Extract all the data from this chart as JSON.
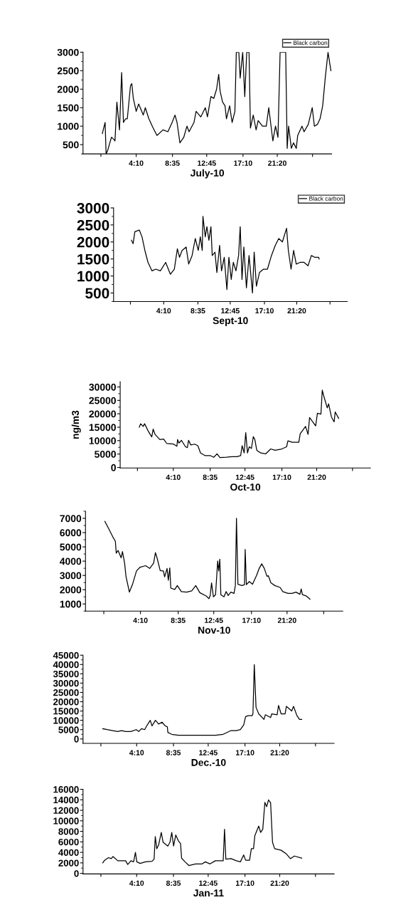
{
  "chart_data": [
    {
      "type": "line",
      "xlabel": "July-10",
      "legend": "top right",
      "xlim": [
        -2.3,
        27.95
      ],
      "ylim": [
        250,
        3000
      ],
      "yticks": [
        500,
        1000,
        1500,
        2000,
        2500,
        3000
      ],
      "xticks": [
        {
          "value": -0.125,
          "label": null
        },
        {
          "value": 4.1667,
          "label": "4:10"
        },
        {
          "value": 8.5833,
          "label": "8:35"
        },
        {
          "value": 12.75,
          "label": "12:45"
        },
        {
          "value": 17.1667,
          "label": "17:10"
        },
        {
          "value": 21.3333,
          "label": "21:20"
        },
        {
          "value": 25.625,
          "label": null
        }
      ],
      "series": [
        {
          "name": "Black carbon",
          "color": "#000000",
          "x": [
            0.05,
            0.39,
            0.51,
            0.71,
            0.96,
            1.16,
            1.42,
            1.59,
            1.82,
            2.14,
            2.4,
            2.62,
            2.88,
            3.09,
            3.48,
            3.64,
            3.82,
            4.17,
            4.47,
            5.03,
            5.28,
            5.71,
            6.23,
            6.7,
            7.43,
            8.03,
            8.54,
            8.89,
            9.14,
            9.49,
            9.96,
            10.35,
            10.6,
            11.2,
            11.46,
            12.03,
            12.58,
            12.84,
            13.26,
            13.61,
            13.95,
            14.21,
            14.38,
            14.68,
            14.98,
            15.15,
            15.54,
            15.84,
            16.18,
            16.35,
            16.66,
            16.82,
            17.13,
            17.38,
            17.62,
            17.9,
            18.07,
            18.41,
            18.76,
            19.01,
            19.53,
            20.0,
            20.3,
            20.8,
            21.12,
            21.42,
            21.68,
            22.36,
            22.54,
            22.71,
            23.05,
            23.31,
            23.65,
            23.82,
            24.34,
            24.6,
            25.11,
            25.59,
            25.85,
            26.23,
            26.54,
            26.86,
            27.17,
            27.51,
            27.86
          ],
          "values": [
            800,
            1100,
            250,
            350,
            550,
            700,
            650,
            600,
            1650,
            900,
            2450,
            1100,
            1200,
            1200,
            2100,
            2150,
            1750,
            1400,
            1600,
            1300,
            1500,
            1200,
            950,
            750,
            900,
            850,
            1100,
            1300,
            1100,
            550,
            700,
            1000,
            850,
            1100,
            1400,
            1250,
            1500,
            1250,
            1800,
            1750,
            2000,
            2400,
            1950,
            1650,
            1550,
            1200,
            1550,
            1100,
            1400,
            3000,
            3000,
            2300,
            3000,
            1800,
            3000,
            3000,
            950,
            1300,
            900,
            1150,
            1000,
            1000,
            1500,
            600,
            1000,
            700,
            3000,
            3000,
            400,
            1000,
            400,
            550,
            400,
            750,
            1000,
            850,
            1050,
            1500,
            1000,
            1050,
            1200,
            1550,
            2300,
            3000,
            2500
          ]
        }
      ]
    },
    {
      "type": "line",
      "xlabel": "Sept-10",
      "legend": "top right",
      "xlim": [
        -2.3,
        27.86
      ],
      "ylim": [
        250,
        3000
      ],
      "yticks": [
        500,
        1000,
        1500,
        2000,
        2500,
        3000
      ],
      "xticks": [
        {
          "value": -0.125,
          "label": null
        },
        {
          "value": 4.1667,
          "label": "4:10"
        },
        {
          "value": 8.5833,
          "label": "8:35"
        },
        {
          "value": 12.75,
          "label": "12:45"
        },
        {
          "value": 17.1667,
          "label": "17:10"
        },
        {
          "value": 21.3333,
          "label": "21:20"
        },
        {
          "value": 25.625,
          "label": null
        }
      ],
      "series": [
        {
          "name": "Black carbon",
          "color": "#000000",
          "x": [
            0.01,
            0.22,
            0.45,
            1.02,
            1.37,
            1.74,
            2.14,
            2.66,
            3.14,
            3.74,
            4.42,
            5.03,
            5.54,
            5.93,
            6.21,
            6.54,
            7.06,
            7.39,
            7.83,
            8.24,
            8.63,
            8.89,
            9.14,
            9.23,
            9.53,
            9.74,
            10.0,
            10.26,
            10.43,
            10.78,
            11.03,
            11.38,
            11.63,
            11.98,
            12.32,
            12.58,
            12.88,
            13.15,
            13.49,
            13.83,
            14.04,
            14.27,
            14.51,
            14.84,
            15.18,
            15.62,
            15.84,
            16.13,
            16.52,
            17.04,
            17.55,
            18.07,
            18.57,
            19.01,
            19.48,
            20.02,
            20.25,
            20.6,
            20.93,
            21.27,
            21.76,
            22.27,
            22.79,
            23.22,
            23.64,
            24.16,
            24.22
          ],
          "values": [
            2050,
            1950,
            2300,
            2350,
            2150,
            1750,
            1400,
            1150,
            1200,
            1150,
            1400,
            1050,
            1200,
            1800,
            1550,
            1750,
            1850,
            1350,
            1600,
            2100,
            1750,
            2150,
            1750,
            2750,
            2150,
            2450,
            2050,
            2450,
            1600,
            1700,
            1100,
            1900,
            1150,
            1550,
            600,
            1550,
            900,
            1400,
            1150,
            1600,
            2450,
            900,
            1850,
            650,
            1600,
            500,
            1700,
            700,
            1100,
            1200,
            1200,
            1600,
            1900,
            2100,
            2000,
            2400,
            1750,
            1200,
            1750,
            1350,
            1400,
            1400,
            1300,
            1600,
            1550,
            1550,
            1500
          ]
        }
      ]
    },
    {
      "type": "line",
      "xlabel": "Oct-10",
      "ylabel": "ng/m3",
      "xlim": [
        -2.19,
        27.77
      ],
      "ylim": [
        -200,
        32000
      ],
      "yticks": [
        0,
        5000,
        10000,
        15000,
        20000,
        25000,
        30000
      ],
      "xticks": [
        {
          "value": -0.125,
          "label": null
        },
        {
          "value": 4.1667,
          "label": "4:10"
        },
        {
          "value": 8.5833,
          "label": "8:35"
        },
        {
          "value": 12.75,
          "label": "12:45"
        },
        {
          "value": 17.1667,
          "label": "17:10"
        },
        {
          "value": 21.3333,
          "label": "21:20"
        },
        {
          "value": 25.625,
          "label": null
        }
      ],
      "series": [
        {
          "color": "#000000",
          "x": [
            0.1,
            0.25,
            0.56,
            0.73,
            1.21,
            1.59,
            1.76,
            1.99,
            2.56,
            3.01,
            3.39,
            4.2,
            4.6,
            4.68,
            4.84,
            5.15,
            5.63,
            5.85,
            6.0,
            6.26,
            6.74,
            7.11,
            7.43,
            7.99,
            8.63,
            9.01,
            9.4,
            9.75,
            10.52,
            11.16,
            11.79,
            12.23,
            12.41,
            12.65,
            12.84,
            13.05,
            13.26,
            13.52,
            13.75,
            13.93,
            14.16,
            14.64,
            15.24,
            15.83,
            16.35,
            17.16,
            17.73,
            17.89,
            18.41,
            19.19,
            19.36,
            20.0,
            20.3,
            20.48,
            20.79,
            21.21,
            21.42,
            21.84,
            22.0,
            22.22,
            22.6,
            22.76,
            23.1,
            23.42,
            23.55,
            23.96
          ],
          "values": [
            15000,
            16300,
            15300,
            16300,
            13300,
            11400,
            14300,
            12300,
            10400,
            10600,
            8900,
            8700,
            7900,
            10400,
            9100,
            10100,
            7700,
            7400,
            10100,
            8400,
            8700,
            8100,
            5400,
            4400,
            4400,
            3800,
            5100,
            3700,
            3800,
            4000,
            4000,
            4400,
            8100,
            5400,
            13000,
            5400,
            7700,
            7100,
            11500,
            10400,
            6400,
            5400,
            5100,
            6900,
            6400,
            6900,
            7700,
            9900,
            9400,
            9400,
            12600,
            15300,
            12300,
            18600,
            17300,
            15500,
            20200,
            19900,
            28800,
            26200,
            22200,
            23700,
            18800,
            17000,
            20700,
            18300
          ]
        }
      ]
    },
    {
      "type": "line",
      "xlabel": "Nov-10",
      "xlim": [
        -2.27,
        27.86
      ],
      "ylim": [
        500,
        7500
      ],
      "yticks": [
        1000,
        2000,
        3000,
        4000,
        5000,
        6000,
        7000
      ],
      "xticks": [
        {
          "value": -0.125,
          "label": null
        },
        {
          "value": 4.1667,
          "label": "4:10"
        },
        {
          "value": 8.5833,
          "label": "8:35"
        },
        {
          "value": 12.75,
          "label": "12:45"
        },
        {
          "value": 17.1667,
          "label": "17:10"
        },
        {
          "value": 21.3333,
          "label": "21:20"
        },
        {
          "value": 25.625,
          "label": null
        }
      ],
      "series": [
        {
          "color": "#000000",
          "x": [
            0.0,
            0.46,
            0.92,
            1.23,
            1.33,
            1.54,
            1.91,
            2.06,
            2.31,
            2.47,
            2.87,
            3.24,
            3.7,
            4.13,
            4.78,
            5.25,
            5.71,
            5.92,
            6.11,
            6.48,
            6.85,
            7.0,
            7.28,
            7.43,
            7.6,
            7.72,
            8.18,
            8.48,
            8.95,
            9.57,
            10.17,
            10.64,
            11.12,
            11.89,
            12.19,
            12.34,
            12.49,
            12.71,
            12.96,
            13.21,
            13.33,
            13.46,
            13.58,
            13.95,
            14.2,
            14.44,
            14.75,
            15.12,
            15.28,
            15.41,
            15.58,
            16.05,
            16.35,
            16.43,
            16.57,
            16.91,
            17.29,
            17.75,
            18.07,
            18.37,
            18.67,
            18.98,
            19.14,
            19.44,
            19.9,
            20.52,
            20.83,
            21.45,
            21.91,
            22.38,
            22.84,
            22.99,
            23.13,
            23.61,
            24.02
          ],
          "values": [
            6780,
            6260,
            5710,
            5390,
            4560,
            4750,
            4230,
            4670,
            3860,
            2940,
            1830,
            2380,
            3310,
            3580,
            3680,
            3490,
            3860,
            4600,
            4230,
            3340,
            3310,
            2900,
            3490,
            2660,
            3530,
            2110,
            2020,
            2290,
            1870,
            1830,
            1920,
            2290,
            1790,
            1550,
            1370,
            1610,
            2480,
            1500,
            1650,
            4010,
            3310,
            4140,
            1650,
            1500,
            1870,
            1590,
            1830,
            1740,
            2290,
            7000,
            2380,
            2290,
            2350,
            4820,
            2350,
            2570,
            2380,
            2980,
            3490,
            3810,
            3490,
            2940,
            2980,
            2480,
            2290,
            2160,
            1870,
            1740,
            1740,
            1830,
            1680,
            2050,
            1650,
            1550,
            1330
          ]
        }
      ]
    },
    {
      "type": "line",
      "xlabel": "Dec.-10",
      "xlim": [
        -2.27,
        27.86
      ],
      "ylim": [
        -2400,
        45000
      ],
      "yticks": [
        0,
        5000,
        10000,
        15000,
        20000,
        25000,
        30000,
        35000,
        40000,
        45000
      ],
      "xticks": [
        {
          "value": -0.125,
          "label": null
        },
        {
          "value": 4.1667,
          "label": "4:10"
        },
        {
          "value": 8.5833,
          "label": "8:35"
        },
        {
          "value": 12.75,
          "label": "12:45"
        },
        {
          "value": 17.1667,
          "label": "17:10"
        },
        {
          "value": 21.3333,
          "label": "21:20"
        },
        {
          "value": 25.625,
          "label": null
        }
      ],
      "series": [
        {
          "color": "#000000",
          "x": [
            0.1,
            0.63,
            1.27,
            1.9,
            2.36,
            2.84,
            3.48,
            4.11,
            4.42,
            4.75,
            5.13,
            5.37,
            5.8,
            6.01,
            6.42,
            6.8,
            7.21,
            7.6,
            7.85,
            7.91,
            8.37,
            9.17,
            10.43,
            11.7,
            12.97,
            13.61,
            14.55,
            15.49,
            16.13,
            16.61,
            17.01,
            17.24,
            17.55,
            18.02,
            18.12,
            18.28,
            18.49,
            18.81,
            19.44,
            19.61,
            20.24,
            20.38,
            21.02,
            21.19,
            21.5,
            21.98,
            22.13,
            22.77,
            22.99,
            23.4,
            23.71,
            23.97
          ],
          "values": [
            5500,
            5000,
            4500,
            4000,
            4500,
            4000,
            4000,
            5000,
            4000,
            5500,
            5000,
            7000,
            10000,
            7000,
            10000,
            8000,
            9000,
            7000,
            6500,
            3500,
            2500,
            2000,
            2000,
            2000,
            2000,
            2000,
            2500,
            4500,
            4500,
            5000,
            7500,
            12000,
            12500,
            12500,
            13500,
            40000,
            17000,
            13500,
            10500,
            13000,
            11500,
            13500,
            13000,
            18000,
            13500,
            13500,
            17500,
            15000,
            17500,
            12500,
            10500,
            10500
          ]
        }
      ]
    },
    {
      "type": "line",
      "xlabel": "Jan-11",
      "xlim": [
        -2.27,
        27.86
      ],
      "ylim": [
        -100,
        16000
      ],
      "yticks": [
        0,
        2000,
        4000,
        6000,
        8000,
        10000,
        12000,
        14000,
        16000
      ],
      "xticks": [
        {
          "value": -0.125,
          "label": null
        },
        {
          "value": 4.1667,
          "label": "4:10"
        },
        {
          "value": 8.5833,
          "label": "8:35"
        },
        {
          "value": 12.75,
          "label": "12:45"
        },
        {
          "value": 17.1667,
          "label": "17:10"
        },
        {
          "value": 21.3333,
          "label": "21:20"
        },
        {
          "value": 25.625,
          "label": null
        }
      ],
      "series": [
        {
          "color": "#000000",
          "x": [
            0.1,
            0.32,
            0.79,
            1.11,
            1.33,
            1.9,
            2.84,
            3.1,
            3.48,
            3.8,
            4.02,
            4.18,
            4.59,
            5.22,
            6.01,
            6.26,
            6.4,
            6.58,
            6.8,
            7.12,
            7.34,
            7.91,
            8.16,
            8.38,
            8.6,
            8.86,
            9.17,
            9.43,
            9.56,
            9.97,
            10.43,
            11.23,
            12.02,
            12.41,
            12.97,
            13.61,
            14.55,
            14.71,
            14.87,
            15.49,
            16.13,
            16.61,
            17.01,
            17.24,
            17.71,
            17.93,
            18.19,
            18.35,
            18.81,
            19.04,
            19.3,
            19.55,
            19.77,
            19.99,
            20.24,
            20.47,
            20.72,
            21.5,
            22.13,
            22.62,
            23.09,
            23.97
          ],
          "values": [
            2000,
            2500,
            3000,
            2800,
            3200,
            2400,
            2400,
            1700,
            2400,
            2200,
            4000,
            2200,
            1900,
            2200,
            2300,
            2700,
            7000,
            4700,
            5400,
            7800,
            5900,
            5200,
            5900,
            7800,
            5200,
            7300,
            6200,
            5700,
            2900,
            2200,
            1500,
            1800,
            1800,
            2200,
            1800,
            2400,
            2400,
            8400,
            2700,
            2800,
            2400,
            2200,
            3500,
            2500,
            2500,
            4700,
            4700,
            7200,
            9000,
            7800,
            8400,
            13500,
            12700,
            14000,
            13400,
            5900,
            4700,
            4400,
            3700,
            2800,
            3300,
            2900
          ]
        }
      ]
    }
  ]
}
